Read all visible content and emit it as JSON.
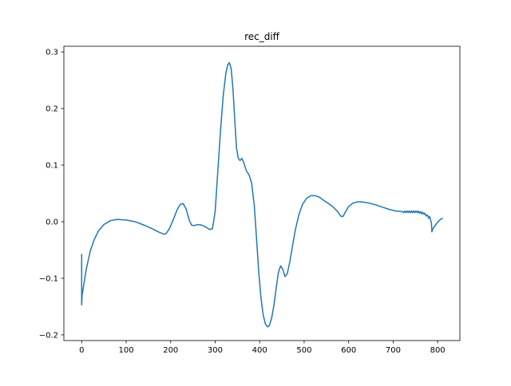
{
  "chart_data": {
    "type": "line",
    "title": "rec_diff",
    "xlabel": "",
    "ylabel": "",
    "xlim": [
      -40,
      850
    ],
    "ylim": [
      -0.21,
      0.31
    ],
    "xticks": [
      0,
      100,
      200,
      300,
      400,
      500,
      600,
      700,
      800
    ],
    "yticks": [
      -0.2,
      -0.1,
      0.0,
      0.1,
      0.2,
      0.3
    ],
    "xtick_labels": [
      "0",
      "100",
      "200",
      "300",
      "400",
      "500",
      "600",
      "700",
      "800"
    ],
    "ytick_labels": [
      "−0.2",
      "−0.1",
      "0.0",
      "0.1",
      "0.2",
      "0.3"
    ],
    "grid": false,
    "legend": "none",
    "series": [
      {
        "color": "#1f77b4",
        "points": [
          [
            0,
            -0.058
          ],
          [
            0,
            -0.147
          ],
          [
            1,
            -0.13
          ],
          [
            3,
            -0.12
          ],
          [
            6,
            -0.105
          ],
          [
            10,
            -0.085
          ],
          [
            15,
            -0.067
          ],
          [
            20,
            -0.05
          ],
          [
            28,
            -0.032
          ],
          [
            38,
            -0.016
          ],
          [
            50,
            -0.005
          ],
          [
            65,
            0.002
          ],
          [
            80,
            0.004
          ],
          [
            100,
            0.003
          ],
          [
            120,
            0.0
          ],
          [
            140,
            -0.006
          ],
          [
            160,
            -0.013
          ],
          [
            175,
            -0.019
          ],
          [
            185,
            -0.022
          ],
          [
            190,
            -0.021
          ],
          [
            198,
            -0.011
          ],
          [
            208,
            0.008
          ],
          [
            215,
            0.022
          ],
          [
            222,
            0.031
          ],
          [
            228,
            0.032
          ],
          [
            235,
            0.022
          ],
          [
            242,
            0.002
          ],
          [
            247,
            -0.006
          ],
          [
            252,
            -0.007
          ],
          [
            260,
            -0.005
          ],
          [
            270,
            -0.006
          ],
          [
            280,
            -0.01
          ],
          [
            288,
            -0.014
          ],
          [
            294,
            -0.012
          ],
          [
            300,
            0.018
          ],
          [
            306,
            0.09
          ],
          [
            312,
            0.16
          ],
          [
            318,
            0.222
          ],
          [
            324,
            0.262
          ],
          [
            328,
            0.277
          ],
          [
            332,
            0.281
          ],
          [
            336,
            0.27
          ],
          [
            340,
            0.235
          ],
          [
            344,
            0.18
          ],
          [
            348,
            0.13
          ],
          [
            352,
            0.112
          ],
          [
            356,
            0.108
          ],
          [
            360,
            0.112
          ],
          [
            364,
            0.105
          ],
          [
            370,
            0.09
          ],
          [
            376,
            0.083
          ],
          [
            382,
            0.068
          ],
          [
            388,
            0.028
          ],
          [
            393,
            -0.03
          ],
          [
            398,
            -0.09
          ],
          [
            403,
            -0.135
          ],
          [
            408,
            -0.165
          ],
          [
            413,
            -0.181
          ],
          [
            418,
            -0.186
          ],
          [
            422,
            -0.183
          ],
          [
            427,
            -0.17
          ],
          [
            432,
            -0.148
          ],
          [
            437,
            -0.118
          ],
          [
            442,
            -0.09
          ],
          [
            447,
            -0.078
          ],
          [
            452,
            -0.084
          ],
          [
            457,
            -0.097
          ],
          [
            462,
            -0.092
          ],
          [
            468,
            -0.07
          ],
          [
            474,
            -0.042
          ],
          [
            480,
            -0.015
          ],
          [
            488,
            0.012
          ],
          [
            496,
            0.03
          ],
          [
            505,
            0.041
          ],
          [
            515,
            0.046
          ],
          [
            525,
            0.046
          ],
          [
            535,
            0.043
          ],
          [
            545,
            0.037
          ],
          [
            555,
            0.032
          ],
          [
            565,
            0.026
          ],
          [
            575,
            0.018
          ],
          [
            582,
            0.01
          ],
          [
            587,
            0.009
          ],
          [
            592,
            0.016
          ],
          [
            600,
            0.027
          ],
          [
            610,
            0.033
          ],
          [
            620,
            0.035
          ],
          [
            630,
            0.035
          ],
          [
            645,
            0.033
          ],
          [
            660,
            0.03
          ],
          [
            675,
            0.026
          ],
          [
            690,
            0.022
          ],
          [
            705,
            0.019
          ],
          [
            720,
            0.018
          ],
          [
            724,
            0.016
          ],
          [
            726,
            0.019
          ],
          [
            729,
            0.016
          ],
          [
            731,
            0.019
          ],
          [
            734,
            0.016
          ],
          [
            736,
            0.019
          ],
          [
            739,
            0.016
          ],
          [
            741,
            0.019
          ],
          [
            744,
            0.016
          ],
          [
            746,
            0.019
          ],
          [
            749,
            0.016
          ],
          [
            751,
            0.019
          ],
          [
            754,
            0.016
          ],
          [
            756,
            0.019
          ],
          [
            759,
            0.015
          ],
          [
            761,
            0.018
          ],
          [
            764,
            0.014
          ],
          [
            766,
            0.017
          ],
          [
            769,
            0.013
          ],
          [
            771,
            0.015
          ],
          [
            774,
            0.01
          ],
          [
            777,
            0.012
          ],
          [
            780,
            0.006
          ],
          [
            782,
            0.009
          ],
          [
            784,
            0.003
          ],
          [
            786,
            -0.002
          ],
          [
            787,
            -0.018
          ],
          [
            789,
            -0.013
          ],
          [
            792,
            -0.009
          ],
          [
            795,
            -0.006
          ],
          [
            800,
            -0.001
          ],
          [
            805,
            0.003
          ],
          [
            810,
            0.006
          ]
        ]
      }
    ]
  }
}
